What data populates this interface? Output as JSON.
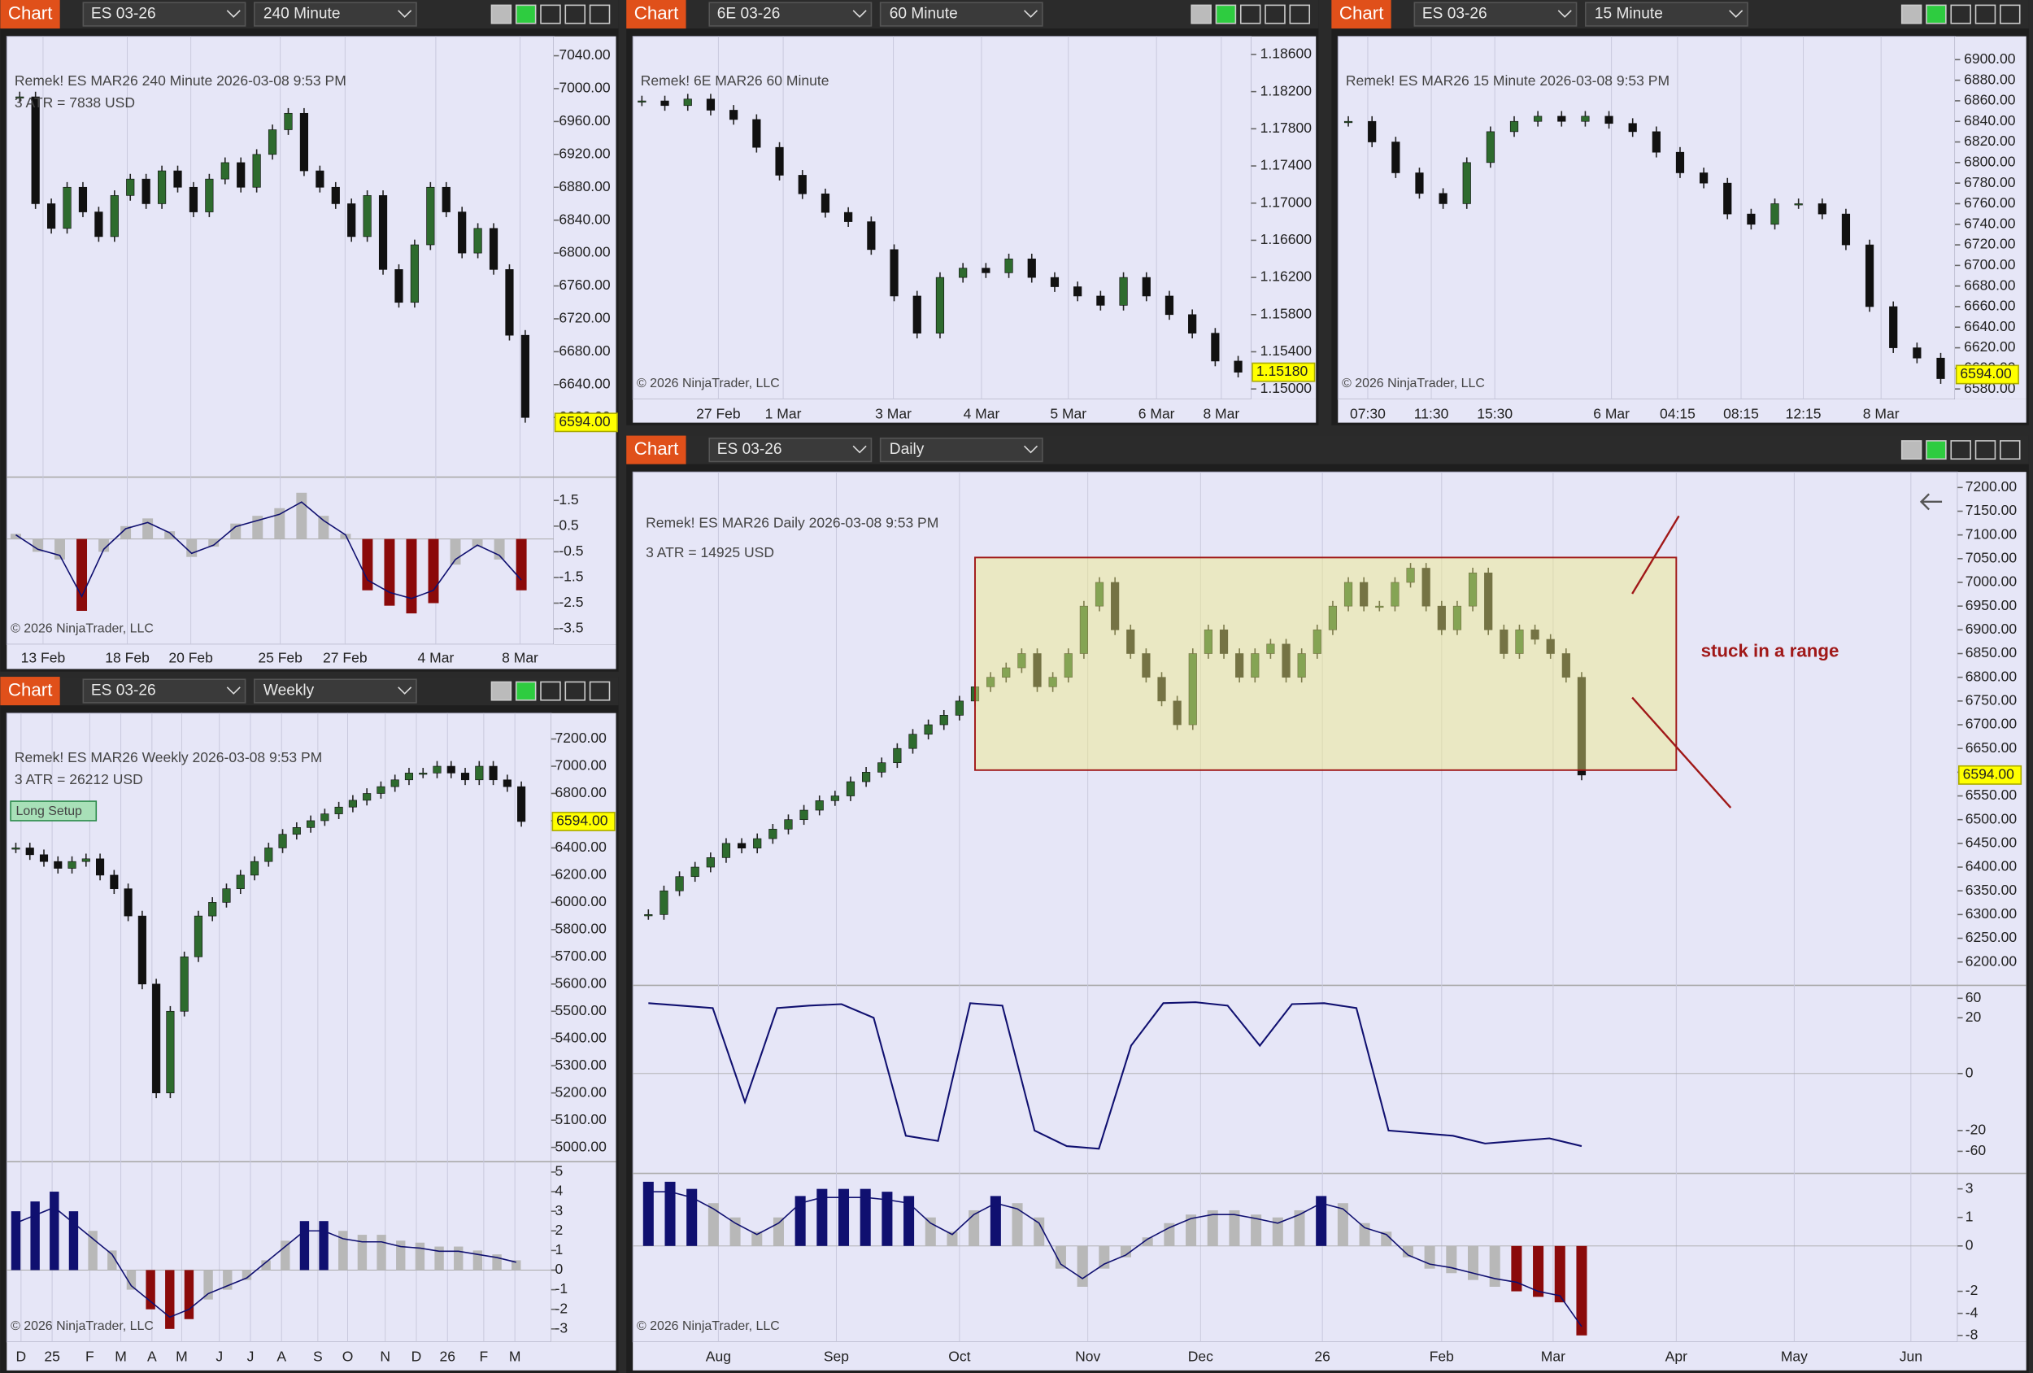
{
  "panels": [
    {
      "tab": "Chart",
      "instrument": "ES 03-26",
      "interval": "240 Minute",
      "header": [
        "Remek!  ES MAR26  240 Minute  2026-03-08 9:53 PM",
        "3 ATR = 7838 USD"
      ],
      "price_labels": [
        "7040.00",
        "7000.00",
        "6960.00",
        "6920.00",
        "6880.00",
        "6840.00",
        "6800.00",
        "6760.00",
        "6720.00",
        "6680.00",
        "6640.00",
        "6600.00"
      ],
      "last_price": "6594.00",
      "indicator_labels": [
        "1.5",
        "0.5",
        "-0.5",
        "-1.5",
        "-2.5",
        "-3.5"
      ],
      "time_labels": [
        "13 Feb",
        "18 Feb",
        "20 Feb",
        "25 Feb",
        "27 Feb",
        "4 Mar",
        "8 Mar"
      ],
      "copyright": "© 2026 NinjaTrader, LLC",
      "closes": [
        6990,
        6860,
        6830,
        6880,
        6850,
        6820,
        6870,
        6890,
        6860,
        6900,
        6880,
        6850,
        6890,
        6910,
        6880,
        6920,
        6950,
        6970,
        6900,
        6880,
        6860,
        6820,
        6870,
        6780,
        6740,
        6810,
        6880,
        6850,
        6800,
        6830,
        6780,
        6700,
        6600
      ],
      "histogram": [
        0.2,
        -0.5,
        -0.8,
        -2.8,
        -0.5,
        0.5,
        0.8,
        0.3,
        -0.7,
        -0.3,
        0.6,
        0.9,
        1.2,
        1.8,
        0.9,
        0.2,
        -2.0,
        -2.6,
        -2.9,
        -2.5,
        -1.0,
        -0.3,
        -0.8,
        -2.0
      ]
    },
    {
      "tab": "Chart",
      "instrument": "6E 03-26",
      "interval": "60 Minute",
      "header": [
        "Remek!  6E MAR26  60 Minute"
      ],
      "price_labels": [
        "1.18600",
        "1.18200",
        "1.17800",
        "1.17400",
        "1.17000",
        "1.16600",
        "1.16200",
        "1.15800",
        "1.15400",
        "1.15000"
      ],
      "last_price": "1.15180",
      "time_labels": [
        "27 Feb",
        "1 Mar",
        "3 Mar",
        "4 Mar",
        "5 Mar",
        "6 Mar",
        "8 Mar"
      ],
      "copyright": "© 2026 NinjaTrader, LLC",
      "closes": [
        1.181,
        1.1805,
        1.1812,
        1.18,
        1.179,
        1.176,
        1.173,
        1.171,
        1.169,
        1.168,
        1.165,
        1.16,
        1.156,
        1.162,
        1.163,
        1.1625,
        1.164,
        1.162,
        1.161,
        1.16,
        1.159,
        1.162,
        1.16,
        1.158,
        1.156,
        1.153,
        1.1518
      ]
    },
    {
      "tab": "Chart",
      "instrument": "ES 03-26",
      "interval": "15 Minute",
      "header": [
        "Remek!  ES MAR26  15 Minute  2026-03-08 9:53 PM"
      ],
      "price_labels": [
        "6900.00",
        "6880.00",
        "6860.00",
        "6840.00",
        "6820.00",
        "6800.00",
        "6780.00",
        "6760.00",
        "6740.00",
        "6720.00",
        "6700.00",
        "6680.00",
        "6660.00",
        "6640.00",
        "6620.00",
        "6600.00",
        "6580.00"
      ],
      "last_price": "6594.00",
      "time_labels": [
        "07:30",
        "11:30",
        "15:30",
        "6 Mar",
        "04:15",
        "08:15",
        "12:15",
        "8 Mar"
      ],
      "copyright": "© 2026 NinjaTrader, LLC",
      "closes": [
        6840,
        6820,
        6790,
        6770,
        6760,
        6800,
        6830,
        6840,
        6845,
        6840,
        6845,
        6838,
        6830,
        6810,
        6790,
        6780,
        6750,
        6740,
        6760,
        6760,
        6750,
        6720,
        6660,
        6620,
        6610,
        6590
      ]
    },
    {
      "tab": "Chart",
      "instrument": "ES 03-26",
      "interval": "Weekly",
      "header": [
        "Remek!  ES MAR26  Weekly  2026-03-08 9:53 PM",
        "3 ATR = 26212 USD"
      ],
      "badge": "Long Setup",
      "price_labels": [
        "7200.00",
        "7000.00",
        "6800.00",
        "6600.00",
        "6400.00",
        "6200.00",
        "6000.00",
        "5800.00",
        "5700.00",
        "5600.00",
        "5500.00",
        "5400.00",
        "5300.00",
        "5200.00",
        "5100.00",
        "5000.00"
      ],
      "last_price": "6594.00",
      "indicator_labels": [
        "5",
        "4",
        "3",
        "2",
        "1",
        "0",
        "-1",
        "-2",
        "-3"
      ],
      "time_labels": [
        "D",
        "25",
        "F",
        "M",
        "A",
        "M",
        "J",
        "J",
        "A",
        "S",
        "O",
        "N",
        "D",
        "26",
        "F",
        "M"
      ],
      "copyright": "© 2026 NinjaTrader, LLC",
      "closes": [
        6400,
        6350,
        6300,
        6250,
        6300,
        6320,
        6200,
        6100,
        5900,
        5600,
        5200,
        5500,
        5700,
        5900,
        6000,
        6100,
        6200,
        6300,
        6400,
        6500,
        6550,
        6600,
        6650,
        6700,
        6750,
        6800,
        6850,
        6900,
        6950,
        6950,
        7000,
        6950,
        6900,
        7000,
        6900,
        6850,
        6594
      ],
      "histogram": [
        3,
        3.5,
        4,
        3,
        2,
        1,
        -1,
        -2,
        -3,
        -2.5,
        -1.5,
        -1,
        -0.5,
        0.5,
        1.5,
        2.5,
        2.5,
        2,
        1.8,
        1.8,
        1.5,
        1.4,
        1.2,
        1.2,
        1,
        0.8,
        0.5
      ]
    },
    {
      "tab": "Chart",
      "instrument": "ES 03-26",
      "interval": "Daily",
      "header": [
        "Remek!  ES MAR26  Daily  2026-03-08 9:53 PM",
        "3 ATR = 14925 USD"
      ],
      "annotation": "stuck in a range",
      "price_labels": [
        "7200.00",
        "7150.00",
        "7100.00",
        "7050.00",
        "7000.00",
        "6950.00",
        "6900.00",
        "6850.00",
        "6800.00",
        "6750.00",
        "6700.00",
        "6650.00",
        "6600.00",
        "6550.00",
        "6500.00",
        "6450.00",
        "6400.00",
        "6350.00",
        "6300.00",
        "6250.00",
        "6200.00"
      ],
      "last_price": "6594.00",
      "oscillator_labels": [
        "60",
        "20",
        "0",
        "-20",
        "-60"
      ],
      "indicator_labels": [
        "3",
        "1",
        "0",
        "-2",
        "-4",
        "-8"
      ],
      "time_labels": [
        "Aug",
        "Sep",
        "Oct",
        "Nov",
        "Dec",
        "26",
        "Feb",
        "Mar",
        "Apr",
        "May",
        "Jun"
      ],
      "copyright": "© 2026 NinjaTrader, LLC",
      "closes": [
        6300,
        6350,
        6380,
        6400,
        6420,
        6450,
        6440,
        6460,
        6480,
        6500,
        6520,
        6540,
        6550,
        6580,
        6600,
        6620,
        6650,
        6680,
        6700,
        6720,
        6750,
        6780,
        6800,
        6820,
        6850,
        6780,
        6800,
        6850,
        6950,
        7000,
        6900,
        6850,
        6800,
        6750,
        6700,
        6850,
        6900,
        6850,
        6800,
        6850,
        6870,
        6800,
        6850,
        6900,
        6950,
        7000,
        6950,
        6950,
        7000,
        7030,
        6950,
        6900,
        6950,
        7020,
        6900,
        6850,
        6900,
        6880,
        6850,
        6800,
        6594
      ],
      "oscillator": [
        50,
        45,
        40,
        -10,
        40,
        45,
        48,
        20,
        -30,
        -40,
        50,
        45,
        -20,
        -50,
        -55,
        10,
        50,
        52,
        45,
        10,
        48,
        50,
        40,
        -20,
        -25,
        -30,
        -45,
        -40,
        -35,
        -50
      ],
      "histogram": [
        3.5,
        3.5,
        3,
        2,
        1,
        0.5,
        1,
        2.5,
        3,
        3,
        3,
        2.8,
        2.5,
        1,
        0.5,
        1.5,
        2.5,
        2,
        1,
        -1,
        -1.8,
        -1,
        -0.5,
        0.3,
        0.8,
        1.2,
        1.5,
        1.5,
        1.2,
        1,
        1.5,
        2.5,
        2,
        0.8,
        0.5,
        -0.5,
        -1,
        -1.2,
        -1.5,
        -1.8,
        -2,
        -2.5,
        -3,
        -8
      ]
    }
  ]
}
